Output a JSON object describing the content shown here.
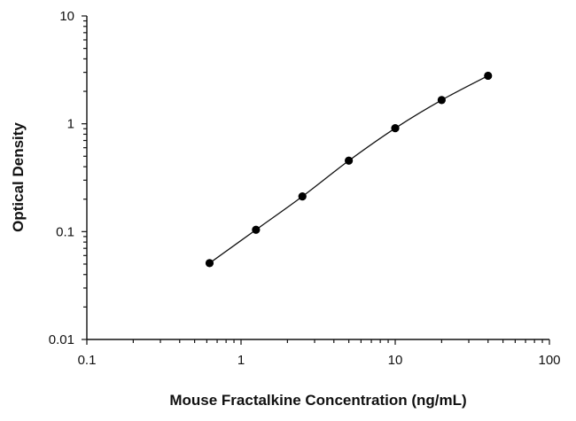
{
  "chart_data": {
    "type": "scatter",
    "title": "",
    "xlabel": "Mouse Fractalkine Concentration (ng/mL)",
    "ylabel": "Optical Density",
    "x_scale": "log",
    "y_scale": "log",
    "xlim": [
      0.1,
      100
    ],
    "ylim": [
      0.01,
      10
    ],
    "x_tick_labels": [
      "0.1",
      "1",
      "10",
      "100"
    ],
    "y_tick_labels": [
      "0.01",
      "0.1",
      "1",
      "10"
    ],
    "grid": false,
    "legend": "none",
    "fit_curve": true,
    "series": [
      {
        "x": [
          0.625,
          1.25,
          2.5,
          5,
          10,
          20,
          40
        ],
        "y": [
          0.051,
          0.104,
          0.212,
          0.455,
          0.91,
          1.66,
          2.79
        ]
      }
    ]
  }
}
